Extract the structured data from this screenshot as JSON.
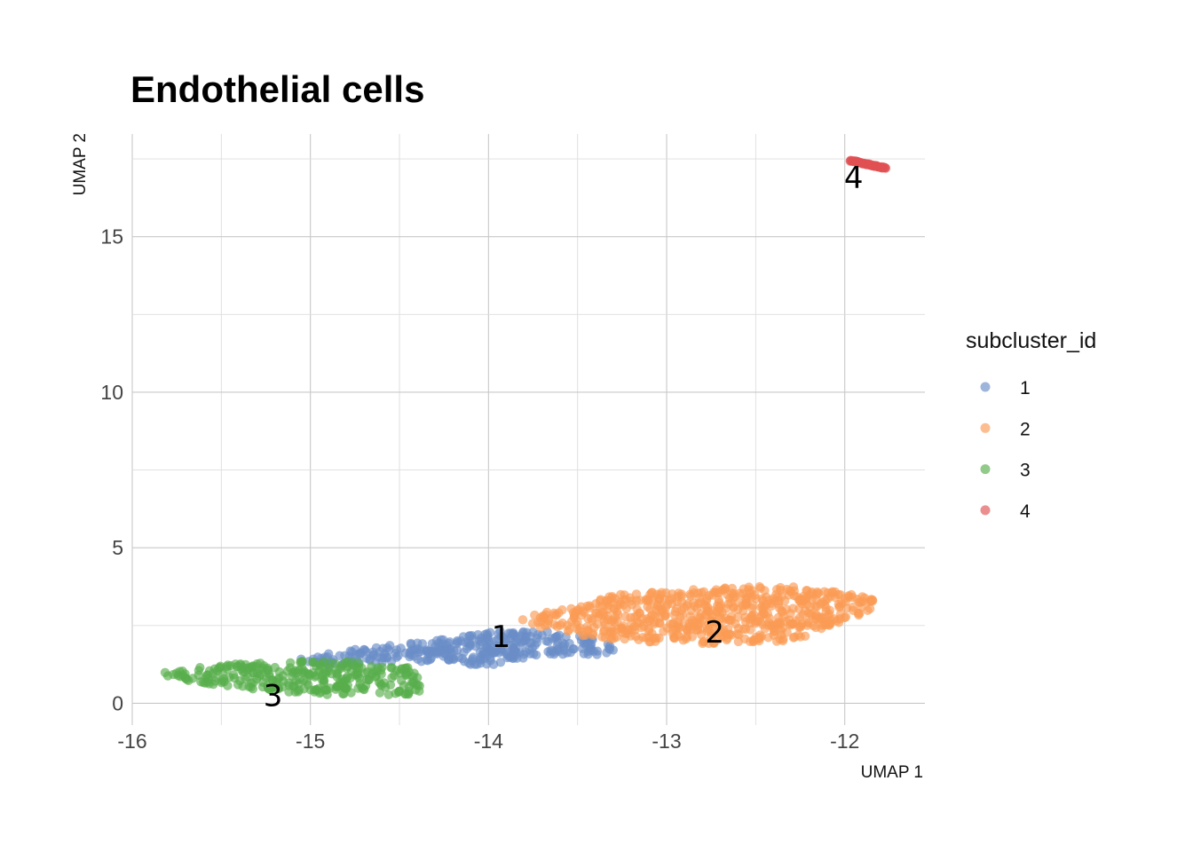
{
  "chart_data": {
    "type": "scatter",
    "title": "Endothelial cells",
    "xlabel": "UMAP 1",
    "ylabel": "UMAP 2",
    "xlim": [
      -16,
      -11.55
    ],
    "ylim": [
      -0.7,
      18.3
    ],
    "x_ticks": [
      -16,
      -15,
      -14,
      -13,
      -12
    ],
    "x_tick_labels": [
      "-16",
      "-15",
      "-14",
      "-13",
      "-12"
    ],
    "y_ticks": [
      0,
      5,
      10,
      15
    ],
    "y_tick_labels": [
      "0",
      "5",
      "10",
      "15"
    ],
    "grid": true,
    "legend_position": "right",
    "legend_title": "subcluster_id",
    "point_opacity": 0.65,
    "series": [
      {
        "name": "1",
        "color": "#6a8dc8",
        "label_position": [
          -13.93,
          2.15
        ],
        "shape": [
          [
            -15.1,
            1.4
          ],
          [
            -14.8,
            1.7
          ],
          [
            -14.5,
            1.9
          ],
          [
            -14.2,
            2.1
          ],
          [
            -13.9,
            2.35
          ],
          [
            -13.6,
            2.3
          ],
          [
            -13.4,
            2.1
          ],
          [
            -13.25,
            1.7
          ],
          [
            -13.4,
            1.55
          ],
          [
            -13.7,
            1.55
          ],
          [
            -14.0,
            1.2
          ],
          [
            -14.3,
            1.3
          ],
          [
            -14.6,
            1.3
          ],
          [
            -14.9,
            1.15
          ]
        ],
        "cells": 330
      },
      {
        "name": "2",
        "color": "#fa9b55",
        "label_position": [
          -12.73,
          2.3
        ],
        "shape": [
          [
            -13.85,
            2.75
          ],
          [
            -13.5,
            3.1
          ],
          [
            -13.3,
            3.5
          ],
          [
            -13.0,
            3.6
          ],
          [
            -12.6,
            3.75
          ],
          [
            -12.3,
            3.75
          ],
          [
            -12.0,
            3.55
          ],
          [
            -11.8,
            3.3
          ],
          [
            -11.8,
            3.1
          ],
          [
            -12.0,
            2.6
          ],
          [
            -12.3,
            2.0
          ],
          [
            -12.6,
            1.95
          ],
          [
            -12.9,
            1.9
          ],
          [
            -13.2,
            2.0
          ],
          [
            -13.4,
            2.1
          ],
          [
            -13.7,
            2.35
          ]
        ],
        "cells": 620
      },
      {
        "name": "3",
        "color": "#58ae4c",
        "label_position": [
          -15.21,
          0.25
        ],
        "shape": [
          [
            -15.82,
            1.0
          ],
          [
            -15.5,
            1.25
          ],
          [
            -15.1,
            1.35
          ],
          [
            -14.7,
            1.35
          ],
          [
            -14.45,
            1.15
          ],
          [
            -14.35,
            0.65
          ],
          [
            -14.4,
            0.3
          ],
          [
            -14.6,
            0.25
          ],
          [
            -14.85,
            0.25
          ],
          [
            -15.2,
            0.4
          ],
          [
            -15.5,
            0.55
          ],
          [
            -15.82,
            0.85
          ]
        ],
        "cells": 300
      },
      {
        "name": "4",
        "color": "#e05253",
        "label_position": [
          -11.95,
          16.9
        ],
        "segment": [
          [
            -11.97,
            17.45
          ],
          [
            -11.77,
            17.2
          ]
        ],
        "cells": 60
      }
    ]
  }
}
